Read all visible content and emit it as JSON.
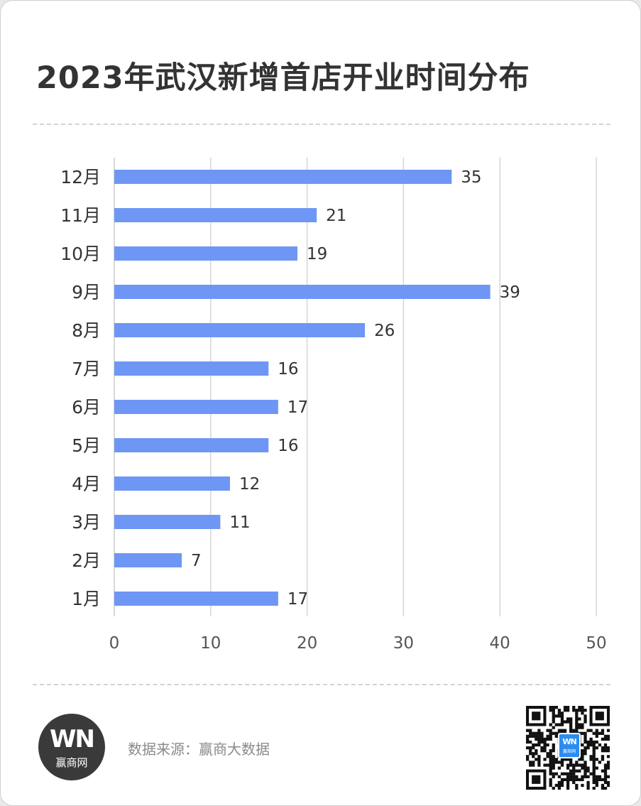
{
  "header": {
    "title": "2023年武汉新增首店开业时间分布"
  },
  "footer": {
    "source_text": "数据来源：赢商大数据",
    "logo": {
      "mark": "WN",
      "name": "赢商网"
    },
    "qr": {
      "icon": "qr-code-icon",
      "center_mark": "WN",
      "center_sub": "赢商网"
    }
  },
  "colors": {
    "bar": "#6e96f5",
    "grid": "#d5d5d5",
    "label": "#333333",
    "tick": "#555555"
  },
  "chart_data": {
    "type": "bar",
    "orientation": "horizontal",
    "categories": [
      "12月",
      "11月",
      "10月",
      "9月",
      "8月",
      "7月",
      "6月",
      "5月",
      "4月",
      "3月",
      "2月",
      "1月"
    ],
    "values": [
      35,
      21,
      19,
      39,
      26,
      16,
      17,
      16,
      12,
      11,
      7,
      17
    ],
    "xlim": [
      0,
      50
    ],
    "xticks": [
      "0",
      "10",
      "20",
      "30",
      "40",
      "50"
    ],
    "grid": "vertical",
    "data_labels": true
  }
}
